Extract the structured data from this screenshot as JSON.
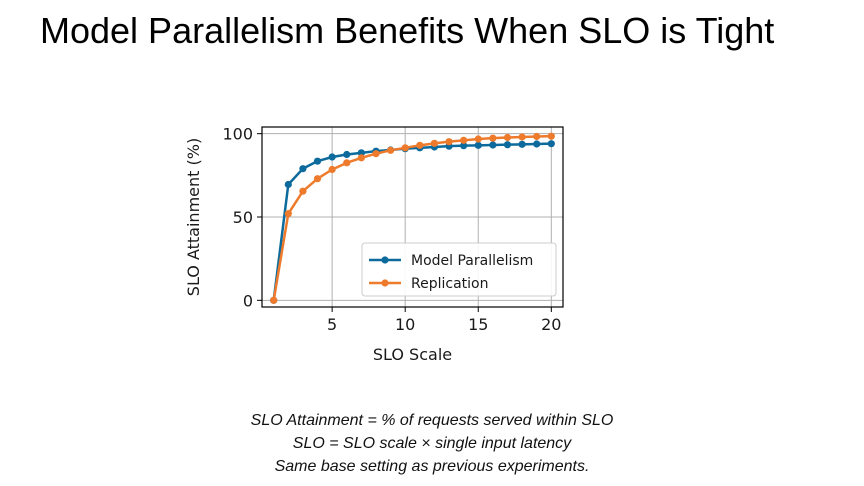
{
  "slide": {
    "title": "Model Parallelism Benefits When SLO is Tight",
    "notes": [
      "SLO Attainment = % of requests served within SLO",
      "SLO = SLO scale × single input latency",
      "Same base setting as previous experiments."
    ]
  },
  "chart_data": {
    "type": "line",
    "xlabel": "SLO Scale",
    "ylabel": "SLO Attainment (%)",
    "xlim": [
      0.2,
      20.8
    ],
    "ylim": [
      -4,
      104
    ],
    "xticks": [
      5,
      10,
      15,
      20
    ],
    "yticks": [
      0,
      50,
      100
    ],
    "grid": true,
    "legend_position": "lower-right",
    "series": [
      {
        "name": "Model Parallelism",
        "color": "#0c6a9c",
        "x": [
          1,
          2,
          3,
          4,
          5,
          6,
          7,
          8,
          9,
          10,
          11,
          12,
          13,
          14,
          15,
          16,
          17,
          18,
          19,
          20
        ],
        "values": [
          0,
          69.5,
          79,
          83.5,
          86,
          87.5,
          88.5,
          89.5,
          90.2,
          91,
          91.5,
          92,
          92.5,
          92.8,
          93,
          93.2,
          93.4,
          93.6,
          93.8,
          94
        ]
      },
      {
        "name": "Replication",
        "color": "#ee7a2c",
        "x": [
          1,
          2,
          3,
          4,
          5,
          6,
          7,
          8,
          9,
          10,
          11,
          12,
          13,
          14,
          15,
          16,
          17,
          18,
          19,
          20
        ],
        "values": [
          0,
          52,
          65.5,
          73,
          78.5,
          82.5,
          85.5,
          88,
          90,
          91.5,
          93,
          94.2,
          95.2,
          96,
          96.8,
          97.3,
          97.7,
          98,
          98.3,
          98.5
        ]
      }
    ]
  }
}
